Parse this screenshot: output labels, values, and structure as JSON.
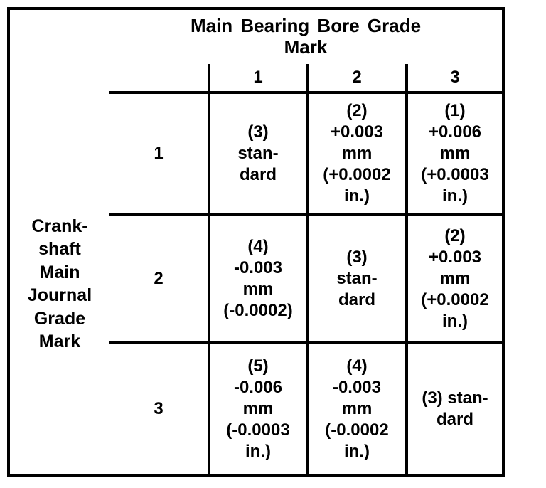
{
  "table": {
    "col_group_title": "Main Bearing Bore Grade\nMark",
    "row_group_title": "Crank-\nshaft\nMain\nJournal\nGrade\nMark",
    "col_headers": [
      "1",
      "2",
      "3"
    ],
    "row_headers": [
      "1",
      "2",
      "3"
    ],
    "cells": [
      [
        "(3)\nstan-\ndard",
        "(2)\n+0.003\nmm\n(+0.0002\nin.)",
        "(1)\n+0.006\nmm\n(+0.0003\nin.)"
      ],
      [
        "(4)\n-0.003\nmm\n(-0.0002)",
        "(3)\nstan-\ndard",
        "(2)\n+0.003\nmm\n(+0.0002\nin.)"
      ],
      [
        "(5)\n-0.006\nmm\n(-0.0003\nin.)",
        "(4)\n-0.003\nmm\n(-0.0002\nin.)",
        "(3) stan-\ndard"
      ]
    ]
  }
}
